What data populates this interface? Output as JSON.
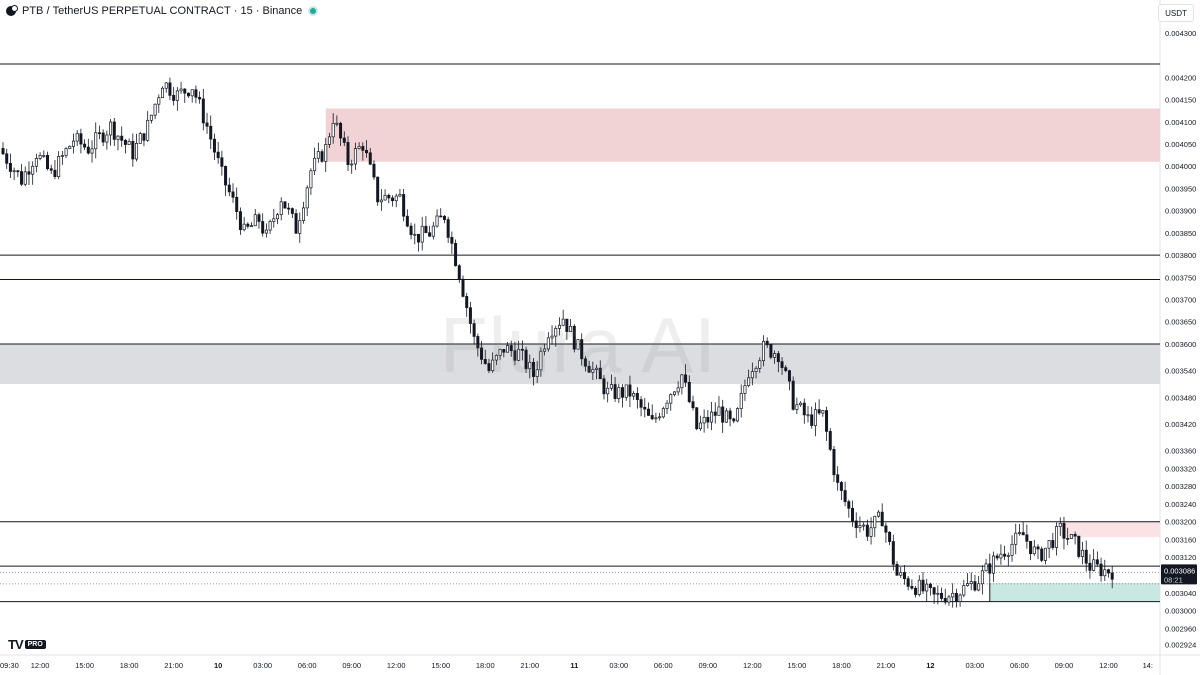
{
  "header": {
    "symbol": "PTB",
    "separator": "/",
    "contract": "TetherUS PERPETUAL CONTRACT",
    "interval": "15",
    "exchange": "Binance",
    "interval_sep": "·"
  },
  "currency_button": "USDT",
  "watermark": "Flura AI",
  "logo": {
    "mark": "TV",
    "badge": "PRO"
  },
  "last_price": {
    "value": "0.003086",
    "countdown": "08:21"
  },
  "chart_data": {
    "type": "candlestick",
    "title": "",
    "ylim": [
      0.0029,
      0.00432
    ],
    "y_ticks": [
      {
        "v": 0.0043,
        "label": "0.004300"
      },
      {
        "v": 0.0042,
        "label": "0.004200"
      },
      {
        "v": 0.00415,
        "label": "0.004150"
      },
      {
        "v": 0.0041,
        "label": "0.004100"
      },
      {
        "v": 0.00405,
        "label": "0.004050"
      },
      {
        "v": 0.004,
        "label": "0.004000"
      },
      {
        "v": 0.00395,
        "label": "0.003950"
      },
      {
        "v": 0.0039,
        "label": "0.003900"
      },
      {
        "v": 0.00385,
        "label": "0.003850"
      },
      {
        "v": 0.0038,
        "label": "0.003800"
      },
      {
        "v": 0.00375,
        "label": "0.003750"
      },
      {
        "v": 0.0037,
        "label": "0.003700"
      },
      {
        "v": 0.00365,
        "label": "0.003650"
      },
      {
        "v": 0.0036,
        "label": "0.003600"
      },
      {
        "v": 0.00354,
        "label": "0.003540"
      },
      {
        "v": 0.00348,
        "label": "0.003480"
      },
      {
        "v": 0.00342,
        "label": "0.003420"
      },
      {
        "v": 0.00336,
        "label": "0.003360"
      },
      {
        "v": 0.00332,
        "label": "0.003320"
      },
      {
        "v": 0.00328,
        "label": "0.003280"
      },
      {
        "v": 0.00324,
        "label": "0.003240"
      },
      {
        "v": 0.0032,
        "label": "0.003200"
      },
      {
        "v": 0.00316,
        "label": "0.003160"
      },
      {
        "v": 0.00312,
        "label": "0.003120"
      },
      {
        "v": 0.00304,
        "label": "0.003040"
      },
      {
        "v": 0.003,
        "label": "0.003000"
      },
      {
        "v": 0.00296,
        "label": "0.002960"
      },
      {
        "v": 0.002924,
        "label": "0.002924"
      }
    ],
    "x_ticks": [
      {
        "t": 0,
        "label": "09:30",
        "bold": false
      },
      {
        "t": 10,
        "label": "12:00",
        "bold": false
      },
      {
        "t": 22,
        "label": "15:00",
        "bold": false
      },
      {
        "t": 34,
        "label": "18:00",
        "bold": false
      },
      {
        "t": 46,
        "label": "21:00",
        "bold": false
      },
      {
        "t": 58,
        "label": "10",
        "bold": true
      },
      {
        "t": 70,
        "label": "03:00",
        "bold": false
      },
      {
        "t": 82,
        "label": "06:00",
        "bold": false
      },
      {
        "t": 94,
        "label": "09:00",
        "bold": false
      },
      {
        "t": 106,
        "label": "12:00",
        "bold": false
      },
      {
        "t": 118,
        "label": "15:00",
        "bold": false
      },
      {
        "t": 130,
        "label": "18:00",
        "bold": false
      },
      {
        "t": 142,
        "label": "21:00",
        "bold": false
      },
      {
        "t": 154,
        "label": "11",
        "bold": true
      },
      {
        "t": 166,
        "label": "03:00",
        "bold": false
      },
      {
        "t": 178,
        "label": "06:00",
        "bold": false
      },
      {
        "t": 190,
        "label": "09:00",
        "bold": false
      },
      {
        "t": 202,
        "label": "12:00",
        "bold": false
      },
      {
        "t": 214,
        "label": "15:00",
        "bold": false
      },
      {
        "t": 226,
        "label": "18:00",
        "bold": false
      },
      {
        "t": 238,
        "label": "21:00",
        "bold": false
      },
      {
        "t": 250,
        "label": "12",
        "bold": true
      },
      {
        "t": 262,
        "label": "03:00",
        "bold": false
      },
      {
        "t": 274,
        "label": "06:00",
        "bold": false
      },
      {
        "t": 286,
        "label": "09:00",
        "bold": false
      },
      {
        "t": 298,
        "label": "12:00",
        "bold": false
      },
      {
        "t": 310,
        "label": "14:",
        "bold": false
      }
    ],
    "anchors": [
      [
        0,
        0.00404
      ],
      [
        6,
        0.00397
      ],
      [
        10,
        0.00403
      ],
      [
        14,
        0.00398
      ],
      [
        20,
        0.00406
      ],
      [
        24,
        0.00404
      ],
      [
        30,
        0.00409
      ],
      [
        36,
        0.00403
      ],
      [
        40,
        0.00409
      ],
      [
        44,
        0.00419
      ],
      [
        48,
        0.00416
      ],
      [
        52,
        0.00418
      ],
      [
        56,
        0.00409
      ],
      [
        60,
        0.00398
      ],
      [
        64,
        0.0039
      ],
      [
        66,
        0.00385
      ],
      [
        70,
        0.00388
      ],
      [
        72,
        0.00384
      ],
      [
        76,
        0.00393
      ],
      [
        80,
        0.00386
      ],
      [
        84,
        0.00399
      ],
      [
        88,
        0.00404
      ],
      [
        90,
        0.00411
      ],
      [
        94,
        0.00401
      ],
      [
        98,
        0.00405
      ],
      [
        102,
        0.00393
      ],
      [
        108,
        0.00393
      ],
      [
        112,
        0.00384
      ],
      [
        116,
        0.00385
      ],
      [
        120,
        0.00389
      ],
      [
        124,
        0.00376
      ],
      [
        128,
        0.00361
      ],
      [
        132,
        0.00354
      ],
      [
        136,
        0.00359
      ],
      [
        140,
        0.00358
      ],
      [
        144,
        0.00353
      ],
      [
        148,
        0.00363
      ],
      [
        152,
        0.00366
      ],
      [
        156,
        0.00359
      ],
      [
        160,
        0.00354
      ],
      [
        164,
        0.00349
      ],
      [
        170,
        0.00349
      ],
      [
        176,
        0.00342
      ],
      [
        180,
        0.00348
      ],
      [
        184,
        0.00353
      ],
      [
        188,
        0.00341
      ],
      [
        194,
        0.00345
      ],
      [
        198,
        0.00341
      ],
      [
        202,
        0.00354
      ],
      [
        206,
        0.00359
      ],
      [
        210,
        0.00358
      ],
      [
        214,
        0.00347
      ],
      [
        218,
        0.00343
      ],
      [
        222,
        0.00344
      ],
      [
        226,
        0.00328
      ],
      [
        230,
        0.00321
      ],
      [
        234,
        0.00318
      ],
      [
        238,
        0.00321
      ],
      [
        242,
        0.00308
      ],
      [
        248,
        0.00305
      ],
      [
        252,
        0.00303
      ],
      [
        258,
        0.00304
      ],
      [
        264,
        0.00307
      ],
      [
        270,
        0.00313
      ],
      [
        276,
        0.00317
      ],
      [
        280,
        0.00312
      ],
      [
        286,
        0.00318
      ],
      [
        290,
        0.00315
      ],
      [
        294,
        0.0031
      ],
      [
        298,
        0.00309
      ]
    ],
    "levels": [
      0.00423,
      0.0038,
      0.003745,
      0.0036,
      0.0032,
      0.0031,
      0.00302
    ],
    "dotted_levels": [
      0.003086,
      0.00306
    ],
    "zones": [
      {
        "t_start": 87,
        "top": 0.00413,
        "bottom": 0.00401,
        "color": "#f2d3d5"
      },
      {
        "t_start": 0,
        "top": 0.0036,
        "bottom": 0.00351,
        "color": "#dcdde0"
      },
      {
        "t_start": 285,
        "top": 0.0032,
        "bottom": 0.003165,
        "color": "#fbe3e5"
      },
      {
        "t_start": 266,
        "top": 0.003062,
        "bottom": 0.00302,
        "color": "#c9e8e1"
      }
    ],
    "green_marker_t": 266,
    "last_index": 299
  }
}
